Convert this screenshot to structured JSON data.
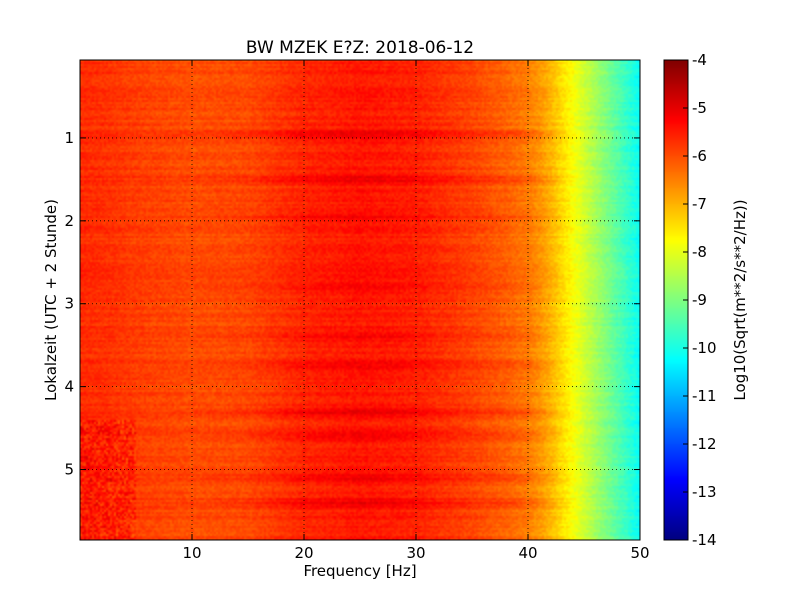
{
  "chart_data": {
    "type": "heatmap",
    "title": "BW MZEK E?Z: 2018-06-12",
    "xlabel": "Frequency [Hz]",
    "ylabel": "Lokalzeit (UTC + 2 Stunde)",
    "xlim": [
      0,
      50
    ],
    "ylim": [
      5.85,
      0.06
    ],
    "x_ticks": [
      "10",
      "20",
      "30",
      "40",
      "50"
    ],
    "x_tick_values": [
      10,
      20,
      30,
      40,
      50
    ],
    "y_ticks": [
      "1",
      "2",
      "3",
      "4",
      "5"
    ],
    "y_tick_values": [
      1,
      2,
      3,
      4,
      5
    ],
    "grid": true,
    "colormap": "jet",
    "colorbar": {
      "label": "Log10(Sqrt(m**2/s**2/Hz))",
      "range": [
        -14,
        -4
      ],
      "ticks": [
        "-4",
        "-5",
        "-6",
        "-7",
        "-8",
        "-9",
        "-10",
        "-11",
        "-12",
        "-13",
        "-14"
      ],
      "tick_values": [
        -4,
        -5,
        -6,
        -7,
        -8,
        -9,
        -10,
        -11,
        -12,
        -13,
        -14
      ]
    },
    "frequency_profile": {
      "frequency_hz": [
        0,
        2,
        5,
        10,
        15,
        20,
        25,
        30,
        35,
        38,
        40,
        41,
        42,
        43,
        44,
        45,
        46,
        47,
        48,
        49,
        50
      ],
      "log10_amplitude": [
        -5.65,
        -5.7,
        -5.85,
        -6.0,
        -5.95,
        -5.6,
        -5.45,
        -5.55,
        -5.9,
        -6.2,
        -6.45,
        -6.7,
        -7.0,
        -7.4,
        -7.8,
        -8.2,
        -8.6,
        -9.0,
        -9.4,
        -9.8,
        -10.2
      ]
    },
    "time_bands": [
      {
        "hour": 0.95,
        "strength": 0.35
      },
      {
        "hour": 1.5,
        "strength": 0.4
      },
      {
        "hour": 1.95,
        "strength": 0.3
      },
      {
        "hour": 2.8,
        "strength": 0.25
      },
      {
        "hour": 3.4,
        "strength": 0.25
      },
      {
        "hour": 3.75,
        "strength": 0.4
      },
      {
        "hour": 4.3,
        "strength": 0.45
      },
      {
        "hour": 4.6,
        "strength": 0.4
      },
      {
        "hour": 5.1,
        "strength": 0.35
      },
      {
        "hour": 5.4,
        "strength": 0.45
      }
    ]
  }
}
